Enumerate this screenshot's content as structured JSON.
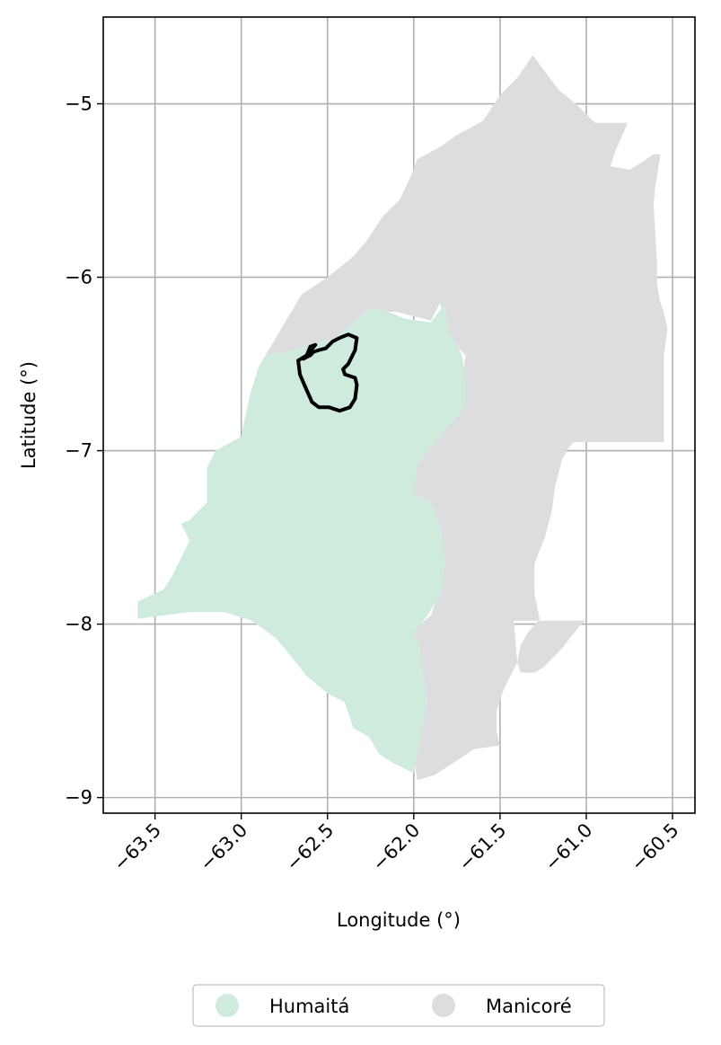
{
  "chart_data": {
    "type": "map",
    "xlabel": "Longitude (°)",
    "ylabel": "Latitude (°)",
    "xlim": [
      -63.8,
      -60.37
    ],
    "ylim": [
      -9.09,
      -4.5
    ],
    "x_ticks": [
      -63.5,
      -63.0,
      -62.5,
      -62.0,
      -61.5,
      -61.0,
      -60.5
    ],
    "x_tick_labels": [
      "−63.5",
      "−63.0",
      "−62.5",
      "−62.0",
      "−61.5",
      "−61.0",
      "−60.5"
    ],
    "y_ticks": [
      -5,
      -6,
      -7,
      -8,
      -9
    ],
    "y_tick_labels": [
      "−5",
      "−6",
      "−7",
      "−8",
      "−9"
    ],
    "grid": true,
    "legend": {
      "placement": "bottom-center",
      "entries": [
        {
          "label": "Humaitá",
          "color": "#cfebdd"
        },
        {
          "label": "Manicoré",
          "color": "#dddddd"
        }
      ]
    },
    "regions": [
      {
        "name": "Manicoré",
        "color": "#dddddd",
        "coords": [
          [
            -61.31,
            -4.72
          ],
          [
            -61.16,
            -4.92
          ],
          [
            -61.05,
            -5.01
          ],
          [
            -60.95,
            -5.11
          ],
          [
            -60.76,
            -5.11
          ],
          [
            -60.83,
            -5.27
          ],
          [
            -60.86,
            -5.36
          ],
          [
            -60.75,
            -5.38
          ],
          [
            -60.68,
            -5.34
          ],
          [
            -60.61,
            -5.29
          ],
          [
            -60.57,
            -5.29
          ],
          [
            -60.6,
            -5.48
          ],
          [
            -60.61,
            -5.58
          ],
          [
            -60.6,
            -5.75
          ],
          [
            -60.59,
            -5.9
          ],
          [
            -60.59,
            -6.04
          ],
          [
            -60.57,
            -6.15
          ],
          [
            -60.55,
            -6.2
          ],
          [
            -60.53,
            -6.3
          ],
          [
            -60.55,
            -6.45
          ],
          [
            -60.55,
            -6.7
          ],
          [
            -60.55,
            -6.95
          ],
          [
            -61.07,
            -6.95
          ],
          [
            -61.1,
            -6.98
          ],
          [
            -61.14,
            -7.05
          ],
          [
            -61.18,
            -7.2
          ],
          [
            -61.2,
            -7.35
          ],
          [
            -61.24,
            -7.5
          ],
          [
            -61.3,
            -7.65
          ],
          [
            -61.3,
            -7.83
          ],
          [
            -61.27,
            -7.97
          ],
          [
            -61.34,
            -8.05
          ],
          [
            -61.38,
            -8.12
          ],
          [
            -61.4,
            -8.22
          ],
          [
            -61.38,
            -8.28
          ],
          [
            -61.3,
            -8.28
          ],
          [
            -61.25,
            -8.25
          ],
          [
            -61.15,
            -8.15
          ],
          [
            -61.03,
            -8.0
          ],
          [
            -61.0,
            -7.98
          ],
          [
            -61.42,
            -7.98
          ],
          [
            -61.4,
            -8.22
          ],
          [
            -61.48,
            -8.38
          ],
          [
            -61.52,
            -8.5
          ],
          [
            -61.52,
            -8.62
          ],
          [
            -61.5,
            -8.7
          ],
          [
            -61.65,
            -8.72
          ],
          [
            -61.77,
            -8.8
          ],
          [
            -61.88,
            -8.87
          ],
          [
            -61.98,
            -8.9
          ],
          [
            -62.0,
            -8.75
          ],
          [
            -61.92,
            -8.45
          ],
          [
            -61.98,
            -8.1
          ],
          [
            -62.02,
            -8.05
          ],
          [
            -61.9,
            -7.95
          ],
          [
            -61.85,
            -7.8
          ],
          [
            -61.83,
            -7.65
          ],
          [
            -61.85,
            -7.45
          ],
          [
            -61.9,
            -7.3
          ],
          [
            -62.0,
            -7.25
          ],
          [
            -62.02,
            -7.1
          ],
          [
            -61.9,
            -6.95
          ],
          [
            -61.8,
            -6.8
          ],
          [
            -61.72,
            -6.6
          ],
          [
            -61.7,
            -6.45
          ],
          [
            -61.8,
            -6.35
          ],
          [
            -61.83,
            -6.2
          ],
          [
            -61.85,
            -6.15
          ],
          [
            -61.9,
            -6.25
          ],
          [
            -62.1,
            -6.2
          ],
          [
            -62.2,
            -6.2
          ],
          [
            -62.26,
            -6.18
          ],
          [
            -62.45,
            -6.35
          ],
          [
            -62.7,
            -6.42
          ],
          [
            -62.86,
            -6.45
          ],
          [
            -62.65,
            -6.1
          ],
          [
            -62.5,
            -6.0
          ],
          [
            -62.35,
            -5.88
          ],
          [
            -62.28,
            -5.8
          ],
          [
            -62.18,
            -5.65
          ],
          [
            -62.08,
            -5.55
          ],
          [
            -62.01,
            -5.4
          ],
          [
            -61.98,
            -5.32
          ],
          [
            -61.85,
            -5.25
          ],
          [
            -61.75,
            -5.18
          ],
          [
            -61.6,
            -5.1
          ],
          [
            -61.5,
            -4.95
          ],
          [
            -61.4,
            -4.85
          ]
        ]
      },
      {
        "name": "Humaitá",
        "color": "#cfebdd",
        "coords": [
          [
            -62.17,
            -6.19
          ],
          [
            -62.05,
            -6.24
          ],
          [
            -61.9,
            -6.26
          ],
          [
            -61.82,
            -6.15
          ],
          [
            -61.8,
            -6.3
          ],
          [
            -61.72,
            -6.45
          ],
          [
            -61.7,
            -6.58
          ],
          [
            -61.7,
            -6.75
          ],
          [
            -61.85,
            -6.92
          ],
          [
            -61.98,
            -7.08
          ],
          [
            -62.0,
            -7.25
          ],
          [
            -61.9,
            -7.3
          ],
          [
            -61.84,
            -7.45
          ],
          [
            -61.82,
            -7.65
          ],
          [
            -61.84,
            -7.82
          ],
          [
            -61.92,
            -7.95
          ],
          [
            -62.0,
            -8.05
          ],
          [
            -61.97,
            -8.1
          ],
          [
            -61.92,
            -8.45
          ],
          [
            -61.96,
            -8.65
          ],
          [
            -62.0,
            -8.86
          ],
          [
            -62.12,
            -8.8
          ],
          [
            -62.2,
            -8.75
          ],
          [
            -62.26,
            -8.65
          ],
          [
            -62.35,
            -8.6
          ],
          [
            -62.4,
            -8.45
          ],
          [
            -62.5,
            -8.4
          ],
          [
            -62.62,
            -8.3
          ],
          [
            -62.7,
            -8.2
          ],
          [
            -62.8,
            -8.08
          ],
          [
            -62.94,
            -7.98
          ],
          [
            -63.1,
            -7.93
          ],
          [
            -63.3,
            -7.93
          ],
          [
            -63.6,
            -7.97
          ],
          [
            -63.6,
            -7.87
          ],
          [
            -63.45,
            -7.8
          ],
          [
            -63.4,
            -7.72
          ],
          [
            -63.3,
            -7.52
          ],
          [
            -63.35,
            -7.42
          ],
          [
            -63.3,
            -7.4
          ],
          [
            -63.2,
            -7.3
          ],
          [
            -63.2,
            -7.1
          ],
          [
            -63.15,
            -7.0
          ],
          [
            -63.0,
            -6.92
          ],
          [
            -62.98,
            -6.82
          ],
          [
            -62.95,
            -6.68
          ],
          [
            -62.9,
            -6.52
          ],
          [
            -62.86,
            -6.45
          ],
          [
            -62.7,
            -6.42
          ],
          [
            -62.45,
            -6.35
          ],
          [
            -62.26,
            -6.18
          ]
        ]
      }
    ],
    "boundary": {
      "color": "#000000",
      "coords": [
        [
          -62.57,
          -6.39
        ],
        [
          -62.6,
          -6.4
        ],
        [
          -62.62,
          -6.45
        ],
        [
          -62.67,
          -6.48
        ],
        [
          -62.66,
          -6.56
        ],
        [
          -62.63,
          -6.63
        ],
        [
          -62.59,
          -6.72
        ],
        [
          -62.55,
          -6.75
        ],
        [
          -62.49,
          -6.75
        ],
        [
          -62.43,
          -6.77
        ],
        [
          -62.37,
          -6.75
        ],
        [
          -62.34,
          -6.7
        ],
        [
          -62.33,
          -6.62
        ],
        [
          -62.34,
          -6.58
        ],
        [
          -62.4,
          -6.56
        ],
        [
          -62.41,
          -6.53
        ],
        [
          -62.38,
          -6.5
        ],
        [
          -62.36,
          -6.46
        ],
        [
          -62.34,
          -6.42
        ],
        [
          -62.33,
          -6.35
        ],
        [
          -62.38,
          -6.33
        ],
        [
          -62.43,
          -6.35
        ],
        [
          -62.47,
          -6.37
        ],
        [
          -62.51,
          -6.41
        ],
        [
          -62.55,
          -6.42
        ],
        [
          -62.58,
          -6.43
        ],
        [
          -62.6,
          -6.45
        ],
        [
          -62.64,
          -6.47
        ]
      ]
    }
  }
}
